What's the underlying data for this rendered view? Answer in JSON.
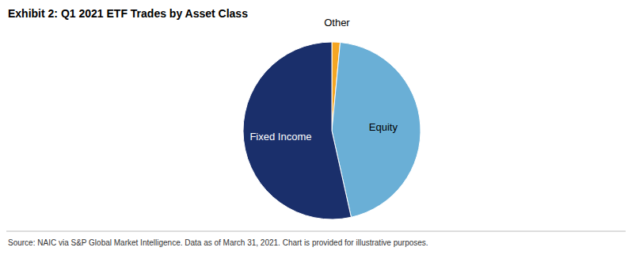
{
  "chart_data": {
    "type": "pie",
    "title": "Exhibit 2: Q1 2021 ETF Trades by Asset Class",
    "categories": [
      "Other",
      "Equity",
      "Fixed Income"
    ],
    "values": [
      1.5,
      45,
      53.5
    ],
    "colors": [
      "#F5A623",
      "#6AAFD6",
      "#1A2F6B"
    ],
    "annotations": [
      "Source: NAIC via S&P Global Market Intelligence.  Data as of March 31, 2021.  Chart is provided for illustrative purposes."
    ]
  }
}
